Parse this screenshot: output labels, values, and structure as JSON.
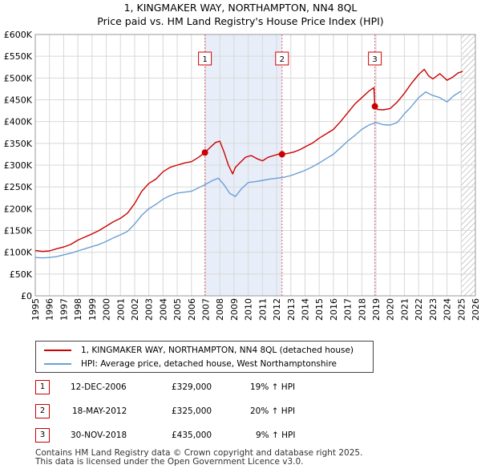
{
  "title_line1": "1, KINGMAKER WAY, NORTHAMPTON, NN4 8QL",
  "title_line2": "Price paid vs. HM Land Registry's House Price Index (HPI)",
  "chart_data": {
    "type": "line",
    "title": "1, KINGMAKER WAY, NORTHAMPTON, NN4 8QL — Price paid vs. HM Land Registry's House Price Index (HPI)",
    "xlim": [
      1995,
      2026
    ],
    "ylim": [
      0,
      600000
    ],
    "x_ticks": [
      1995,
      1996,
      1997,
      1998,
      1999,
      2000,
      2001,
      2002,
      2003,
      2004,
      2005,
      2006,
      2007,
      2008,
      2009,
      2010,
      2011,
      2012,
      2013,
      2014,
      2015,
      2016,
      2017,
      2018,
      2019,
      2020,
      2021,
      2022,
      2023,
      2024,
      2025,
      2026
    ],
    "y_ticks": [
      0,
      50000,
      100000,
      150000,
      200000,
      250000,
      300000,
      350000,
      400000,
      450000,
      500000,
      550000,
      600000
    ],
    "y_tick_labels": [
      "£0",
      "£50K",
      "£100K",
      "£150K",
      "£200K",
      "£250K",
      "£300K",
      "£350K",
      "£400K",
      "£450K",
      "£500K",
      "£550K",
      "£600K"
    ],
    "grid": true,
    "shaded_periods": [
      [
        2006.95,
        2012.38
      ],
      [
        2018.92,
        2019.0
      ]
    ],
    "future_hatch_from": 2025.0,
    "series": [
      {
        "name": "1, KINGMAKER WAY, NORTHAMPTON, NN4 8QL (detached house)",
        "color": "#cc0000",
        "x": [
          1995,
          1995.5,
          1996,
          1996.5,
          1997,
          1997.5,
          1998,
          1998.5,
          1999,
          1999.5,
          2000,
          2000.5,
          2001,
          2001.5,
          2002,
          2002.5,
          2003,
          2003.5,
          2004,
          2004.5,
          2005,
          2005.5,
          2006,
          2006.5,
          2006.95,
          2007.3,
          2007.7,
          2008,
          2008.3,
          2008.6,
          2008.9,
          2009.1,
          2009.4,
          2009.8,
          2010.2,
          2010.6,
          2011,
          2011.4,
          2011.8,
          2012.2,
          2012.38,
          2012.8,
          2013.2,
          2013.6,
          2014,
          2014.5,
          2015,
          2015.5,
          2016,
          2016.5,
          2017,
          2017.5,
          2018,
          2018.5,
          2018.85,
          2018.92,
          2019.1,
          2019.5,
          2020,
          2020.5,
          2021,
          2021.5,
          2022,
          2022.4,
          2022.7,
          2023,
          2023.5,
          2024,
          2024.4,
          2024.8,
          2025.1
        ],
        "y": [
          104000,
          102000,
          103000,
          108000,
          112000,
          118000,
          128000,
          135000,
          142000,
          150000,
          160000,
          170000,
          178000,
          190000,
          212000,
          240000,
          258000,
          268000,
          285000,
          295000,
          300000,
          305000,
          308000,
          318000,
          329000,
          340000,
          352000,
          355000,
          330000,
          300000,
          280000,
          295000,
          305000,
          318000,
          322000,
          315000,
          310000,
          318000,
          322000,
          326000,
          325000,
          327000,
          330000,
          335000,
          342000,
          350000,
          362000,
          372000,
          382000,
          400000,
          420000,
          440000,
          455000,
          470000,
          478000,
          435000,
          428000,
          427000,
          430000,
          445000,
          465000,
          488000,
          508000,
          520000,
          505000,
          498000,
          510000,
          495000,
          502000,
          512000,
          515000
        ]
      },
      {
        "name": "HPI: Average price, detached house, West Northamptonshire",
        "color": "#6b9fd4",
        "x": [
          1995,
          1995.5,
          1996,
          1996.5,
          1997,
          1997.5,
          1998,
          1998.5,
          1999,
          1999.5,
          2000,
          2000.5,
          2001,
          2001.5,
          2002,
          2002.5,
          2003,
          2003.5,
          2004,
          2004.5,
          2005,
          2005.5,
          2006,
          2006.5,
          2007,
          2007.5,
          2007.9,
          2008.3,
          2008.7,
          2009.1,
          2009.5,
          2010,
          2010.5,
          2011,
          2011.5,
          2012,
          2012.5,
          2013,
          2013.5,
          2014,
          2014.5,
          2015,
          2015.5,
          2016,
          2016.5,
          2017,
          2017.5,
          2018,
          2018.5,
          2019,
          2019.5,
          2020,
          2020.5,
          2021,
          2021.5,
          2022,
          2022.5,
          2023,
          2023.5,
          2024,
          2024.5,
          2025
        ],
        "y": [
          88000,
          87000,
          88000,
          90000,
          94000,
          98000,
          103000,
          108000,
          113000,
          118000,
          125000,
          133000,
          140000,
          148000,
          165000,
          185000,
          200000,
          210000,
          222000,
          230000,
          236000,
          238000,
          240000,
          248000,
          256000,
          265000,
          270000,
          255000,
          235000,
          228000,
          245000,
          260000,
          262000,
          265000,
          268000,
          270000,
          272000,
          276000,
          282000,
          288000,
          296000,
          305000,
          315000,
          325000,
          340000,
          355000,
          368000,
          382000,
          392000,
          398000,
          393000,
          392000,
          398000,
          418000,
          435000,
          455000,
          468000,
          460000,
          455000,
          445000,
          460000,
          470000
        ]
      }
    ],
    "sale_markers": [
      {
        "label": "1",
        "x": 2006.95,
        "y": 329000
      },
      {
        "label": "2",
        "x": 2012.38,
        "y": 325000
      },
      {
        "label": "3",
        "x": 2018.92,
        "y": 435000
      }
    ]
  },
  "legend": {
    "property_label": "1, KINGMAKER WAY, NORTHAMPTON, NN4 8QL (detached house)",
    "hpi_label": "HPI: Average price, detached house, West Northamptonshire"
  },
  "sales": [
    {
      "num": "1",
      "date": "12-DEC-2006",
      "price": "£329,000",
      "hpi": "19% ↑ HPI"
    },
    {
      "num": "2",
      "date": "18-MAY-2012",
      "price": "£325,000",
      "hpi": "20% ↑ HPI"
    },
    {
      "num": "3",
      "date": "30-NOV-2018",
      "price": "£435,000",
      "hpi": "9% ↑ HPI"
    }
  ],
  "footer_line1": "Contains HM Land Registry data © Crown copyright and database right 2025.",
  "footer_line2": "This data is licensed under the Open Government Licence v3.0."
}
